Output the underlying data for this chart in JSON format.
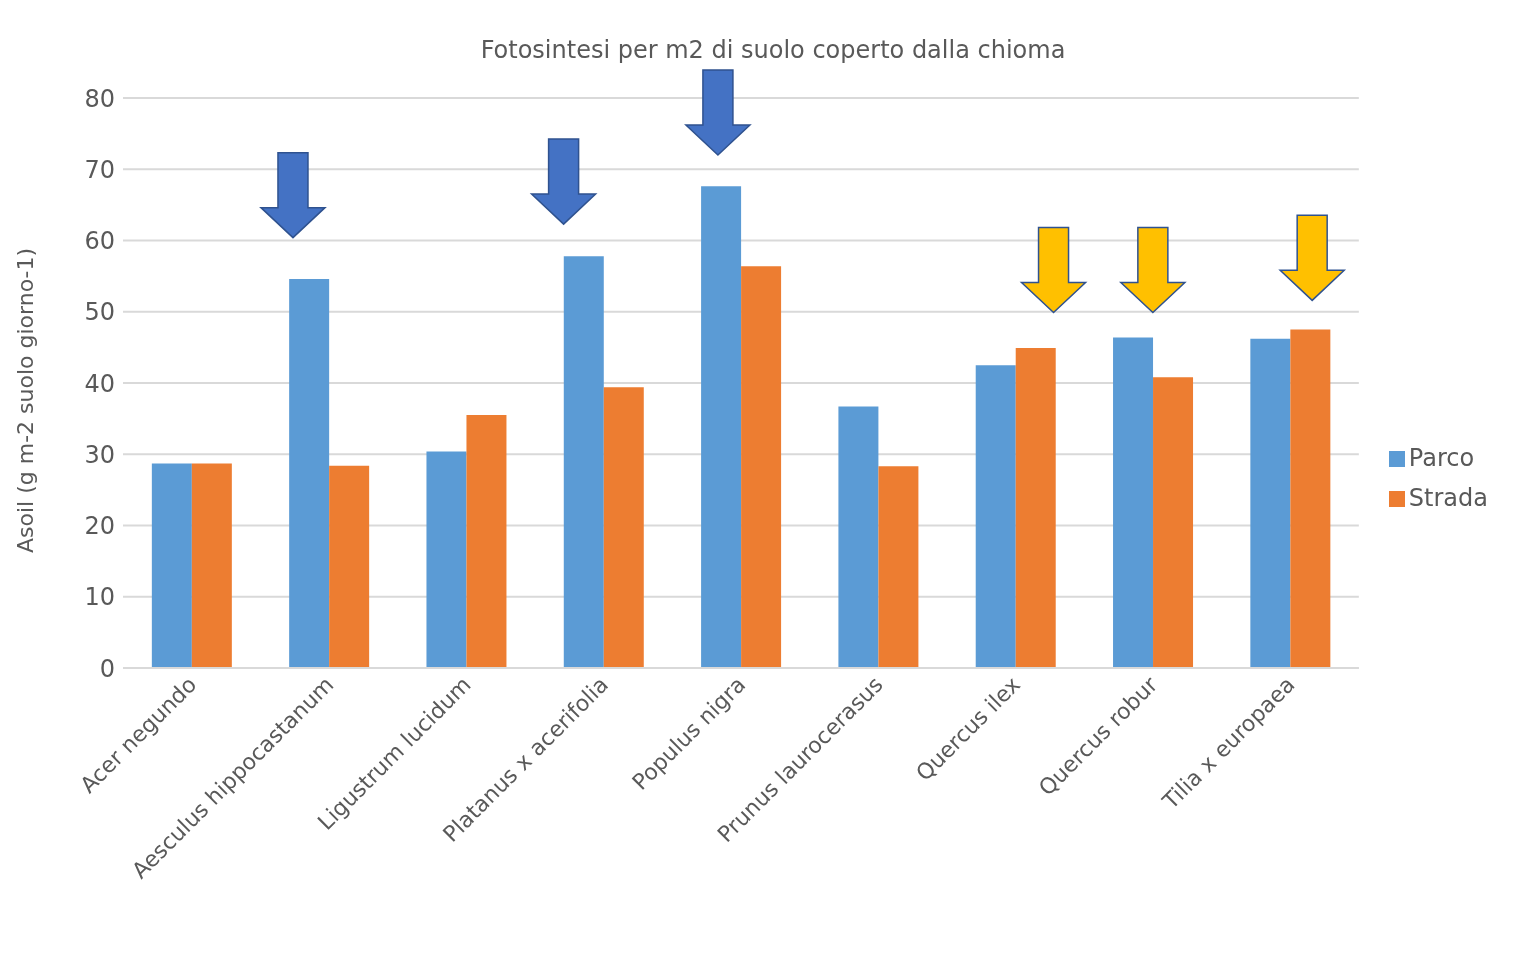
{
  "chart_data": {
    "type": "bar",
    "title": "Fotosintesi per m2 di suolo coperto dalla chioma",
    "ylabel": "Asoil (g m-2 suolo giorno-1)",
    "categories": [
      "Acer negundo",
      "Aesculus hippocastanum",
      "Ligustrum lucidum",
      "Platanus x acerifolia",
      "Populus nigra",
      "Prunus laurocerasus",
      "Quercus ilex",
      "Quercus robur",
      "Tilia x europaea"
    ],
    "series": [
      {
        "name": "Parco",
        "color": "#5b9bd5",
        "values": [
          28.7,
          54.6,
          30.4,
          57.8,
          67.6,
          36.7,
          42.5,
          46.4,
          46.2
        ]
      },
      {
        "name": "Strada",
        "color": "#ed7d31",
        "values": [
          28.7,
          28.4,
          35.5,
          39.4,
          56.4,
          28.3,
          44.9,
          40.8,
          47.5
        ]
      }
    ],
    "ylim": [
      0,
      80
    ],
    "yticks": [
      0,
      10,
      20,
      30,
      40,
      50,
      60,
      70,
      80
    ],
    "grid": "y",
    "legend": "right"
  }
}
